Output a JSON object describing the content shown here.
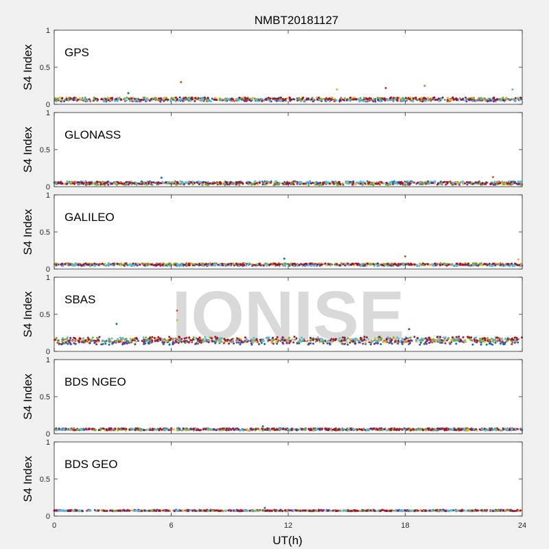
{
  "chart_data": {
    "type": "scatter",
    "title": "NMBT20181127",
    "xlabel": "UT(h)",
    "ylabel": "S4 Index",
    "xlim": [
      0,
      24
    ],
    "xticks": [
      "0",
      "6",
      "12",
      "18",
      "24"
    ],
    "ylim": [
      0,
      1
    ],
    "yticks": [
      "0",
      "0.5",
      "1"
    ],
    "watermark": "IONISE",
    "watermark_panel": 3,
    "colors": [
      "#0072BD",
      "#D95319",
      "#EDB120",
      "#7E2F8E",
      "#77AC30",
      "#4DBEEE",
      "#A2142F"
    ],
    "panels": [
      {
        "label": "GPS",
        "baseline": 0.06,
        "spread": 0.035,
        "outliers": [
          [
            3.8,
            0.15
          ],
          [
            6.5,
            0.3
          ],
          [
            14.5,
            0.2
          ],
          [
            17.0,
            0.22
          ],
          [
            19.0,
            0.25
          ],
          [
            23.5,
            0.2
          ]
        ]
      },
      {
        "label": "GLONASS",
        "baseline": 0.045,
        "spread": 0.03,
        "outliers": [
          [
            5.5,
            0.12
          ],
          [
            22.5,
            0.13
          ]
        ]
      },
      {
        "label": "GALILEO",
        "baseline": 0.06,
        "spread": 0.025,
        "outliers": [
          [
            11.8,
            0.14
          ],
          [
            18.0,
            0.17
          ],
          [
            23.8,
            0.13
          ]
        ]
      },
      {
        "label": "SBAS",
        "baseline": 0.14,
        "spread": 0.06,
        "outliers": [
          [
            3.2,
            0.37
          ],
          [
            6.3,
            0.55
          ],
          [
            6.3,
            0.42
          ],
          [
            18.2,
            0.3
          ]
        ]
      },
      {
        "label": "BDS NGEO",
        "baseline": 0.055,
        "spread": 0.025,
        "outliers": [
          [
            10.7,
            0.1
          ]
        ]
      },
      {
        "label": "BDS GEO",
        "baseline": 0.075,
        "spread": 0.01,
        "outliers": [
          [
            10.8,
            0.11
          ]
        ]
      }
    ]
  }
}
